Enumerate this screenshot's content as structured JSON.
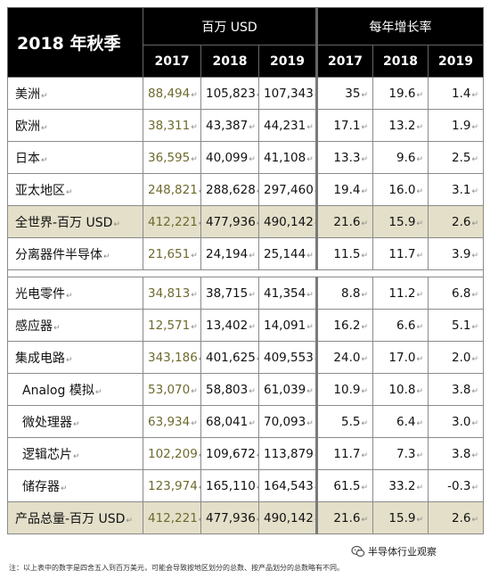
{
  "table": {
    "title": "2018 年秋季",
    "group_usd": "百万 USD",
    "group_growth": "每年增长率",
    "years": [
      "2017",
      "2018",
      "2019",
      "2017",
      "2018",
      "2019"
    ],
    "rows": [
      {
        "label": "美洲",
        "v2017": "88,494",
        "v2018": "105,823",
        "v2019": "107,343",
        "g2017": "35",
        "g2018": "19.6",
        "g2019": "1.4",
        "sub": false,
        "shaded": false
      },
      {
        "label": "欧洲",
        "v2017": "38,311",
        "v2018": "43,387",
        "v2019": "44,231",
        "g2017": "17.1",
        "g2018": "13.2",
        "g2019": "1.9",
        "sub": false,
        "shaded": false
      },
      {
        "label": "日本",
        "v2017": "36,595",
        "v2018": "40,099",
        "v2019": "41,108",
        "g2017": "13.3",
        "g2018": "9.6",
        "g2019": "2.5",
        "sub": false,
        "shaded": false
      },
      {
        "label": "亚太地区",
        "v2017": "248,821",
        "v2018": "288,628",
        "v2019": "297,460",
        "g2017": "19.4",
        "g2018": "16.0",
        "g2019": "3.1",
        "sub": false,
        "shaded": false
      },
      {
        "label": "全世界-百万 USD",
        "v2017": "412,221",
        "v2018": "477,936",
        "v2019": "490,142",
        "g2017": "21.6",
        "g2018": "15.9",
        "g2019": "2.6",
        "sub": false,
        "shaded": true
      },
      {
        "label": "分离器件半导体",
        "v2017": "21,651",
        "v2018": "24,194",
        "v2019": "25,144",
        "g2017": "11.5",
        "g2018": "11.7",
        "g2019": "3.9",
        "sub": false,
        "shaded": false
      },
      {
        "label": "光电零件",
        "v2017": "34,813",
        "v2018": "38,715",
        "v2019": "41,354",
        "g2017": "8.8",
        "g2018": "11.2",
        "g2019": "6.8",
        "sub": false,
        "shaded": false
      },
      {
        "label": "感应器",
        "v2017": "12,571",
        "v2018": "13,402",
        "v2019": "14,091",
        "g2017": "16.2",
        "g2018": "6.6",
        "g2019": "5.1",
        "sub": false,
        "shaded": false
      },
      {
        "label": "集成电路",
        "v2017": "343,186",
        "v2018": "401,625",
        "v2019": "409,553",
        "g2017": "24.0",
        "g2018": "17.0",
        "g2019": "2.0",
        "sub": false,
        "shaded": false
      },
      {
        "label": "Analog 模拟",
        "v2017": "53,070",
        "v2018": "58,803",
        "v2019": "61,039",
        "g2017": "10.9",
        "g2018": "10.8",
        "g2019": "3.8",
        "sub": true,
        "shaded": false
      },
      {
        "label": "微处理器",
        "v2017": "63,934",
        "v2018": "68,041",
        "v2019": "70,093",
        "g2017": "5.5",
        "g2018": "6.4",
        "g2019": "3.0",
        "sub": true,
        "shaded": false
      },
      {
        "label": "逻辑芯片",
        "v2017": "102,209",
        "v2018": "109,672",
        "v2019": "113,879",
        "g2017": "11.7",
        "g2018": "7.3",
        "g2019": "3.8",
        "sub": true,
        "shaded": false
      },
      {
        "label": "储存器",
        "v2017": "123,974",
        "v2018": "165,110",
        "v2019": "164,543",
        "g2017": "61.5",
        "g2018": "33.2",
        "g2019": "-0.3",
        "sub": true,
        "shaded": false
      },
      {
        "label": "产品总量-百万 USD",
        "v2017": "412,221",
        "v2018": "477,936",
        "v2019": "490,142",
        "g2017": "21.6",
        "g2018": "15.9",
        "g2019": "2.6",
        "sub": false,
        "shaded": true
      }
    ],
    "gap_after_index": 5,
    "paragraph_mark": "↵"
  },
  "footnote": "注：以上表中的数字是四舍五入到百万美元，可能会导致按地区划分的总数、按产品划分的总数略有不同。",
  "watermark": "半导体行业观察",
  "colors": {
    "header_bg": "#000000",
    "shade": "#e3dfc9",
    "olive": "#6e6a2e"
  }
}
